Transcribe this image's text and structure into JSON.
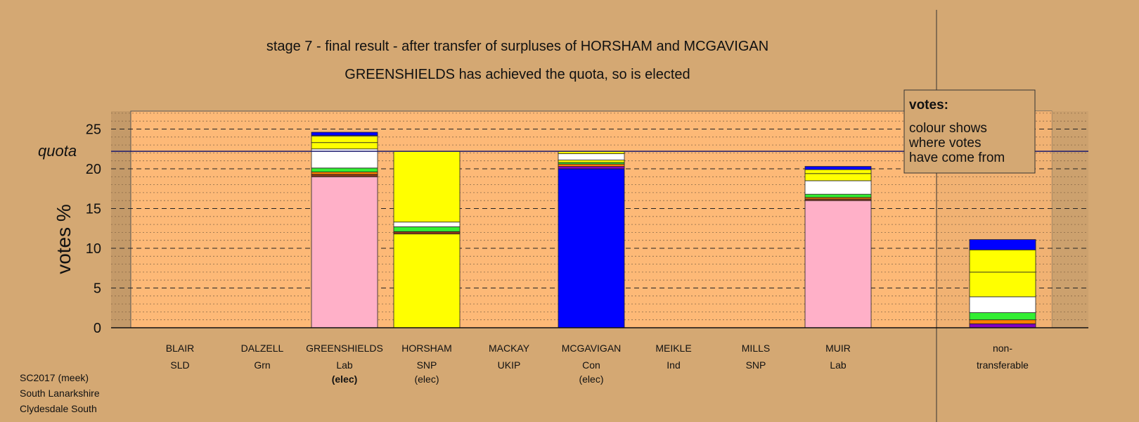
{
  "chart_data": {
    "type": "bar",
    "stacked": true,
    "title": "stage 7 - final result - after transfer of surpluses of HORSHAM and MCGAVIGAN",
    "subtitle": "GREENSHIELDS has achieved the quota, so is elected",
    "ylabel": "votes %",
    "ylim": [
      0,
      27
    ],
    "yticks": [
      0,
      5,
      10,
      15,
      20,
      25
    ],
    "grid": true,
    "quota": {
      "label": "quota",
      "value": 22.2
    },
    "legend": {
      "title": "votes:",
      "lines": [
        "colour shows",
        "where votes",
        "have come from"
      ],
      "placement": "top-right"
    },
    "colors": {
      "Lab": "#ffb0c8",
      "SNP": "#ffff00",
      "Con": "#0000ff",
      "Grn": "#33ee33",
      "SLD": "#ffffff",
      "UKIP": "#8000c0",
      "Ind": "#ff8000",
      "Other": "#8b3a1a",
      "outline": "#222222",
      "quota_line": "#1a1a6e"
    },
    "candidates": [
      {
        "name": "BLAIR",
        "party": "SLD",
        "status": "",
        "status_bold": false,
        "segments": []
      },
      {
        "name": "DALZELL",
        "party": "Grn",
        "status": "",
        "status_bold": false,
        "segments": []
      },
      {
        "name": "GREENSHIELDS",
        "party": "Lab",
        "status": "(elec)",
        "status_bold": true,
        "segments": [
          {
            "from": "Lab",
            "value": 19.0
          },
          {
            "from": "Other",
            "value": 0.3
          },
          {
            "from": "Ind",
            "value": 0.3
          },
          {
            "from": "Grn",
            "value": 0.5
          },
          {
            "from": "SLD",
            "value": 2.4
          },
          {
            "from": "SNP",
            "value": 0.8
          },
          {
            "from": "SNP",
            "value": 0.8
          },
          {
            "from": "SLD",
            "value": 0.1
          },
          {
            "from": "Con",
            "value": 0.4
          }
        ]
      },
      {
        "name": "HORSHAM",
        "party": "SNP",
        "status": "(elec)",
        "status_bold": false,
        "segments": [
          {
            "from": "SNP",
            "value": 11.8
          },
          {
            "from": "Other",
            "value": 0.3
          },
          {
            "from": "Grn",
            "value": 0.6
          },
          {
            "from": "SLD",
            "value": 0.6
          },
          {
            "from": "SNP",
            "value": 8.9
          }
        ]
      },
      {
        "name": "MACKAY",
        "party": "UKIP",
        "status": "",
        "status_bold": false,
        "segments": []
      },
      {
        "name": "MCGAVIGAN",
        "party": "Con",
        "status": "(elec)",
        "status_bold": false,
        "segments": [
          {
            "from": "Con",
            "value": 20.0
          },
          {
            "from": "UKIP",
            "value": 0.3
          },
          {
            "from": "Ind",
            "value": 0.3
          },
          {
            "from": "Grn",
            "value": 0.2
          },
          {
            "from": "SNP",
            "value": 0.3
          },
          {
            "from": "SLD",
            "value": 0.8
          },
          {
            "from": "SNP",
            "value": 0.3
          }
        ]
      },
      {
        "name": "MEIKLE",
        "party": "Ind",
        "status": "",
        "status_bold": false,
        "segments": []
      },
      {
        "name": "MILLS",
        "party": "SNP",
        "status": "",
        "status_bold": false,
        "segments": []
      },
      {
        "name": "MUIR",
        "party": "Lab",
        "status": "",
        "status_bold": false,
        "segments": [
          {
            "from": "Lab",
            "value": 16.0
          },
          {
            "from": "Other",
            "value": 0.2
          },
          {
            "from": "Ind",
            "value": 0.2
          },
          {
            "from": "Grn",
            "value": 0.4
          },
          {
            "from": "SLD",
            "value": 1.7
          },
          {
            "from": "SNP",
            "value": 0.9
          },
          {
            "from": "SNP",
            "value": 0.5
          },
          {
            "from": "Con",
            "value": 0.4
          }
        ]
      }
    ],
    "nontransferable": {
      "label_line1": "non-",
      "label_line2": "transferable",
      "segments": [
        {
          "from": "UKIP",
          "value": 0.5
        },
        {
          "from": "Ind",
          "value": 0.5
        },
        {
          "from": "Grn",
          "value": 0.9
        },
        {
          "from": "SLD",
          "value": 2.0
        },
        {
          "from": "SNP",
          "value": 3.1
        },
        {
          "from": "SNP",
          "value": 2.8
        },
        {
          "from": "Con",
          "value": 1.3
        }
      ]
    }
  },
  "footer": {
    "line1": "SC2017 (meek)",
    "line2": "South Lanarkshire",
    "line3": "Clydesdale South"
  }
}
